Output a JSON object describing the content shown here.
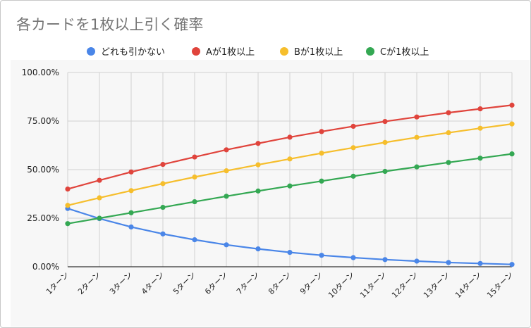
{
  "chart_data": {
    "type": "line",
    "title": "各カードを1枚以上引く確率",
    "categories": [
      "1ターン",
      "2ターン",
      "3ターン",
      "4ターン",
      "5ターン",
      "6ターン",
      "7ターン",
      "8ターン",
      "9ターン",
      "10ターン",
      "11ターン",
      "12ターン",
      "13ターン",
      "14ターン",
      "15ターン"
    ],
    "series": [
      {
        "name": "どれも引かない",
        "color": "#4a86e8",
        "values": [
          30.0,
          24.8,
          20.5,
          16.9,
          13.9,
          11.3,
          9.2,
          7.4,
          5.9,
          4.7,
          3.7,
          2.9,
          2.2,
          1.7,
          1.2
        ]
      },
      {
        "name": "Aが1枚以上",
        "color": "#e0443c",
        "values": [
          40.0,
          44.5,
          48.8,
          52.7,
          56.5,
          60.2,
          63.5,
          66.7,
          69.6,
          72.3,
          74.8,
          77.1,
          79.3,
          81.3,
          83.2
        ]
      },
      {
        "name": "Bが1枚以上",
        "color": "#f6be2c",
        "values": [
          31.6,
          35.5,
          39.2,
          42.8,
          46.2,
          49.4,
          52.5,
          55.5,
          58.5,
          61.3,
          64.0,
          66.6,
          69.0,
          71.3,
          73.5
        ]
      },
      {
        "name": "Cが1枚以上",
        "color": "#34a853",
        "values": [
          22.2,
          25.0,
          27.8,
          30.6,
          33.5,
          36.3,
          39.0,
          41.6,
          44.1,
          46.6,
          49.1,
          51.4,
          53.7,
          55.9,
          58.1
        ]
      }
    ],
    "yticks": [
      "0.00%",
      "25.00%",
      "50.00%",
      "75.00%",
      "100.00%"
    ],
    "ylim": [
      0,
      100
    ],
    "grid": true,
    "legend_position": "top"
  }
}
